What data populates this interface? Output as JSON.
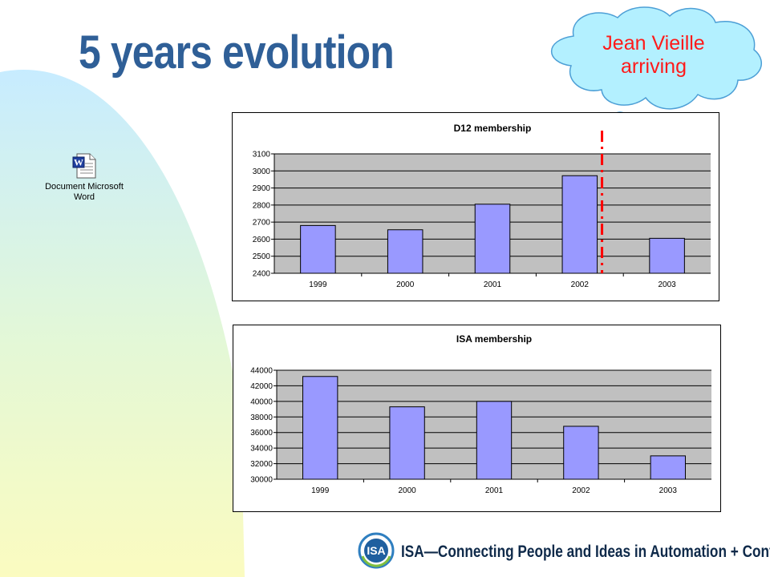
{
  "slide": {
    "title": "5 years evolution",
    "callout": "Jean Vieille arriving",
    "embedded_object_label": "Document Microsoft Word",
    "embedded_icon": "word-document-icon",
    "footer_logo_text": "ISA",
    "footer_tagline": "ISA—Connecting People and Ideas in Automation + Control"
  },
  "colors": {
    "title": "#2f5f97",
    "callout_text": "#ff1a1a",
    "bar_fill": "#9999ff",
    "plot_bg": "#c0c0c0",
    "marker_line": "#ff0000",
    "cloud_fill": "#b3f0ff",
    "cloud_stroke": "#4d9fd6"
  },
  "chart_data": [
    {
      "type": "bar",
      "title": "D12 membership",
      "categories": [
        "1999",
        "2000",
        "2001",
        "2002",
        "2003"
      ],
      "values": [
        2680,
        2655,
        2805,
        2972,
        2605
      ],
      "ylim": [
        2400,
        3100
      ],
      "yticks": [
        2400,
        2500,
        2600,
        2700,
        2800,
        2900,
        3000,
        3100
      ],
      "grid": true,
      "annotation": "dashed marker after 2002"
    },
    {
      "type": "bar",
      "title": "ISA membership",
      "categories": [
        "1999",
        "2000",
        "2001",
        "2002",
        "2003"
      ],
      "values": [
        43200,
        39300,
        40000,
        36800,
        33000
      ],
      "ylim": [
        30000,
        44000
      ],
      "yticks": [
        30000,
        32000,
        34000,
        36000,
        38000,
        40000,
        42000,
        44000
      ],
      "grid": true
    }
  ]
}
